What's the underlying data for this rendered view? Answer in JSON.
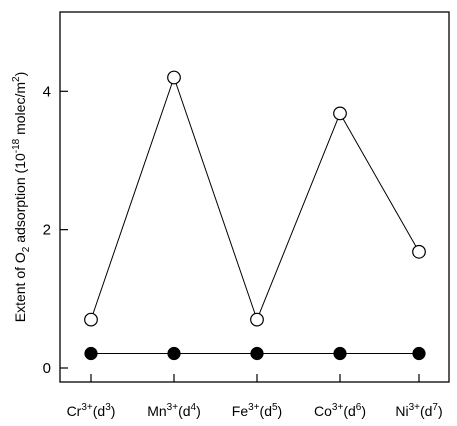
{
  "chart_data": {
    "type": "line",
    "title": "",
    "ylabel": {
      "pre": "Extent of O",
      "sub": "2",
      "mid": " adsorption (10",
      "sup": "-18",
      "post": " molec/m",
      "sup2": "2",
      "end": ")"
    },
    "ylim": [
      -0.3,
      5.1
    ],
    "yticks": [
      0,
      2,
      4
    ],
    "categories": [
      {
        "base": "Cr",
        "ion": "3+",
        "d": "3"
      },
      {
        "base": "Mn",
        "ion": "3+",
        "d": "4"
      },
      {
        "base": "Fe",
        "ion": "3+",
        "d": "5"
      },
      {
        "base": "Co",
        "ion": "3+",
        "d": "6"
      },
      {
        "base": "Ni",
        "ion": "3+",
        "d": "7"
      }
    ],
    "series": [
      {
        "marker": "open-circle",
        "values": [
          0.7,
          4.2,
          0.7,
          3.68,
          1.68
        ]
      },
      {
        "marker": "filled-circle",
        "values": [
          0.21,
          0.21,
          0.21,
          0.21,
          0.21
        ]
      }
    ],
    "grid": false,
    "legend": "none"
  }
}
